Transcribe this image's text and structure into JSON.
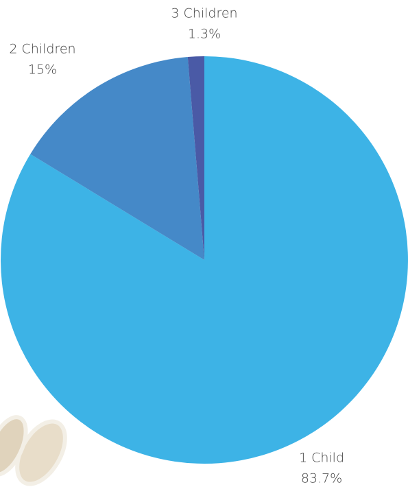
{
  "chart_data": {
    "type": "pie",
    "categories": [
      "1 Child",
      "2 Children",
      "3 Children"
    ],
    "values": [
      83.7,
      15,
      1.3
    ],
    "value_labels": [
      "83.7%",
      "15%",
      "1.3%"
    ],
    "colors": [
      "#3db3e6",
      "#4589c8",
      "#4a5aa6"
    ]
  }
}
